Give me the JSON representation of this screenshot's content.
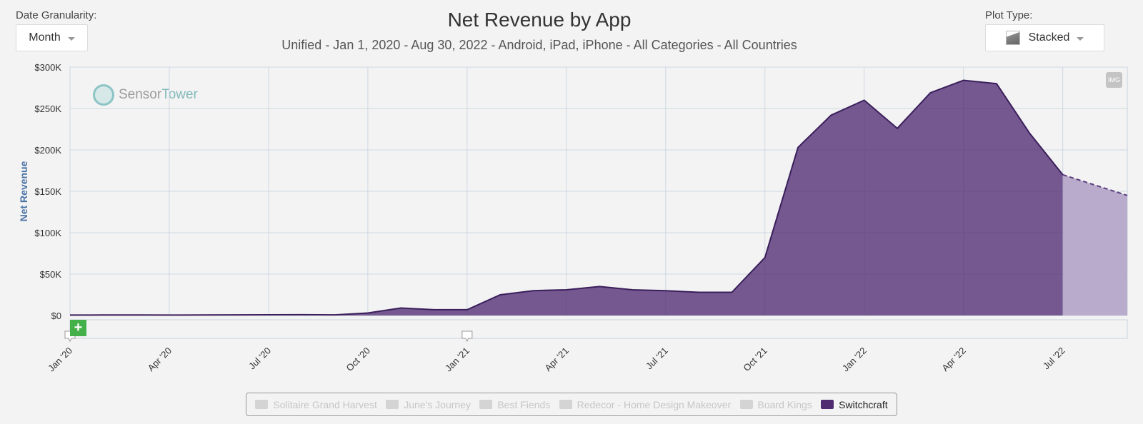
{
  "controls": {
    "granularity_label": "Date Granularity:",
    "granularity_value": "Month",
    "plot_type_label": "Plot Type:",
    "plot_type_value": "Stacked"
  },
  "buttons": {
    "img_label": "IMG",
    "add_label": "+"
  },
  "watermark": {
    "brand_a": "Sensor",
    "brand_b": "Tower"
  },
  "legend": [
    {
      "label": "Solitaire Grand Harvest",
      "active": false
    },
    {
      "label": "June's Journey",
      "active": false
    },
    {
      "label": "Best Fiends",
      "active": false
    },
    {
      "label": "Redecor - Home Design Makeover",
      "active": false
    },
    {
      "label": "Board Kings",
      "active": false
    },
    {
      "label": "Switchcraft",
      "active": true
    }
  ],
  "colors": {
    "series": "#4f2b72",
    "projected": "#b3a3c7",
    "grid": "#cfd8e3",
    "axis_title": "#4a73a6"
  },
  "chart_data": {
    "type": "area",
    "title": "Net Revenue by App",
    "subtitle": "Unified - Jan 1, 2020 - Aug 30, 2022 - Android, iPad, iPhone - All Categories - All Countries",
    "xlabel": "",
    "ylabel": "Net Revenue",
    "ylim": [
      0,
      300000
    ],
    "y_ticks": [
      "$0",
      "$50K",
      "$100K",
      "$150K",
      "$200K",
      "$250K",
      "$300K"
    ],
    "x_tick_labels": [
      "Jan '20",
      "Apr '20",
      "Jul '20",
      "Oct '20",
      "Jan '21",
      "Apr '21",
      "Jul '21",
      "Oct '21",
      "Jan '22",
      "Apr '22",
      "Jul '22"
    ],
    "x": [
      "2020-01",
      "2020-02",
      "2020-03",
      "2020-04",
      "2020-05",
      "2020-06",
      "2020-07",
      "2020-08",
      "2020-09",
      "2020-10",
      "2020-11",
      "2020-12",
      "2021-01",
      "2021-02",
      "2021-03",
      "2021-04",
      "2021-05",
      "2021-06",
      "2021-07",
      "2021-08",
      "2021-09",
      "2021-10",
      "2021-11",
      "2021-12",
      "2022-01",
      "2022-02",
      "2022-03",
      "2022-04",
      "2022-05",
      "2022-06",
      "2022-07",
      "2022-08"
    ],
    "series": [
      {
        "name": "Switchcraft",
        "values": [
          500,
          600,
          700,
          500,
          600,
          800,
          900,
          1000,
          800,
          3000,
          9000,
          7000,
          7000,
          25000,
          30000,
          31000,
          35000,
          31000,
          30000,
          28000,
          28000,
          70000,
          203000,
          242000,
          260000,
          226000,
          269000,
          284000,
          280000,
          220000,
          170000,
          145000
        ]
      }
    ],
    "projected_from": "2022-07",
    "grid": true,
    "legend_position": "bottom"
  }
}
